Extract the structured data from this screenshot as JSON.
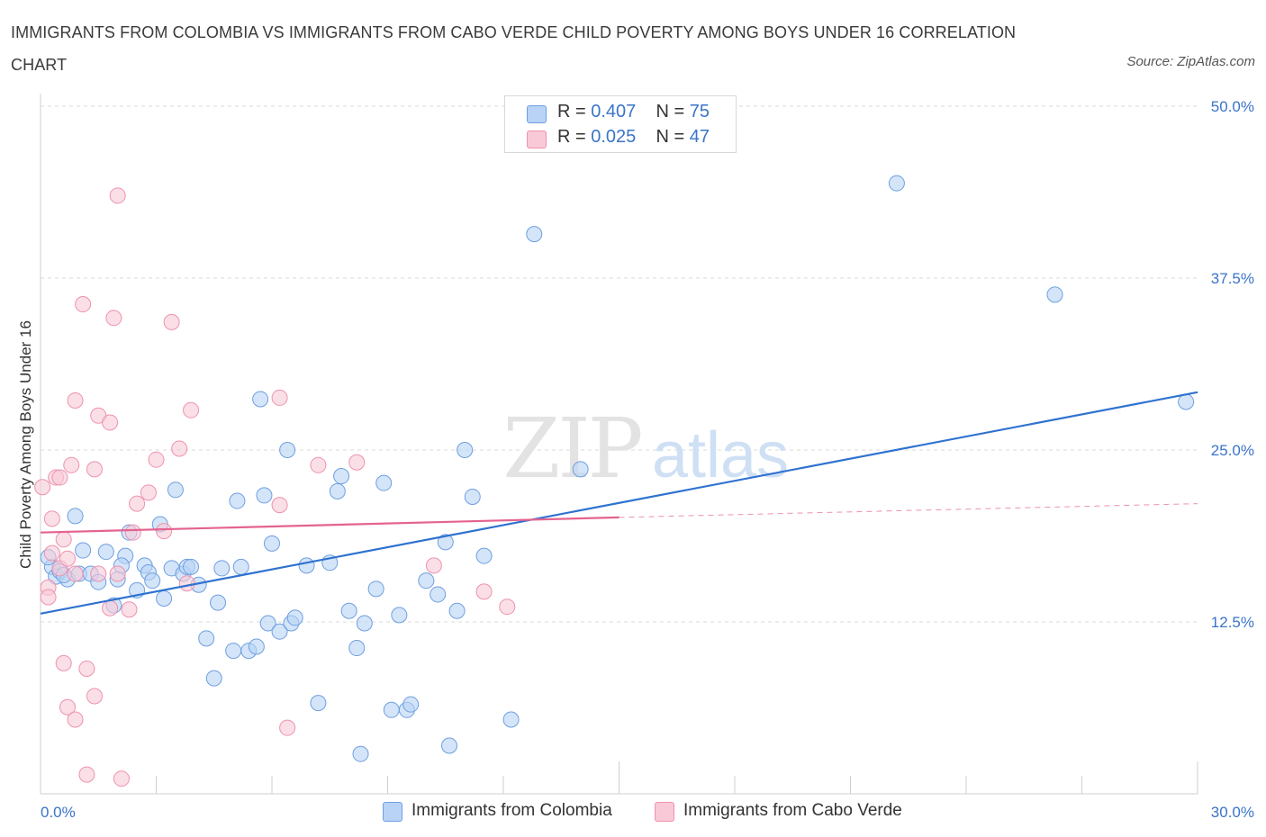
{
  "header": {
    "title": "IMMIGRANTS FROM COLOMBIA VS IMMIGRANTS FROM CABO VERDE CHILD POVERTY AMONG BOYS UNDER 16 CORRELATION CHART",
    "source": "Source: ZipAtlas.com"
  },
  "watermark": {
    "part1": "ZIP",
    "part2": "atlas"
  },
  "legend": {
    "colombia": {
      "r_label": "R = ",
      "r_value": "0.407",
      "n_label": "N = ",
      "n_value": "75"
    },
    "caboverde": {
      "r_label": "R = ",
      "r_value": "0.025",
      "n_label": "N = ",
      "n_value": "47"
    }
  },
  "bottom_legend": {
    "colombia": "Immigrants from Colombia",
    "caboverde": "Immigrants from Cabo Verde"
  },
  "colors": {
    "colombia_fill": "#b8d3f5",
    "colombia_stroke": "#6f9fe0",
    "colombia_line": "#2f72d0",
    "caboverde_fill": "#f9c9d7",
    "caboverde_stroke": "#ee92ad",
    "caboverde_line": "#e4638e",
    "tick_label": "#3a74c9",
    "grid": "#d9d9d9"
  },
  "chart_data": {
    "type": "scatter",
    "title": "IMMIGRANTS FROM COLOMBIA VS IMMIGRANTS FROM CABO VERDE CHILD POVERTY AMONG BOYS UNDER 16 CORRELATION CHART",
    "xlabel": "",
    "ylabel": "Child Poverty Among Boys Under 16",
    "xlim": [
      0,
      30
    ],
    "ylim": [
      0,
      50
    ],
    "x_tick_labels": [
      "0.0%",
      "30.0%"
    ],
    "x_tick_values": [
      0,
      30
    ],
    "y_tick_labels": [
      "12.5%",
      "25.0%",
      "37.5%",
      "50.0%"
    ],
    "y_tick_values": [
      12.5,
      25,
      37.5,
      50
    ],
    "grid": true,
    "legend_placement": "top-center",
    "series": [
      {
        "name": "Immigrants from Colombia",
        "R": 0.407,
        "N": 75,
        "trend": {
          "x": [
            0,
            30
          ],
          "y": [
            13.1,
            29.2
          ],
          "dashed_extension": false
        },
        "points": [
          [
            0.3,
            16.5
          ],
          [
            0.4,
            15.8
          ],
          [
            0.5,
            16.2
          ],
          [
            0.7,
            15.6
          ],
          [
            0.9,
            20.2
          ],
          [
            1.0,
            16.0
          ],
          [
            1.1,
            17.7
          ],
          [
            1.3,
            16.0
          ],
          [
            1.5,
            15.4
          ],
          [
            1.7,
            17.6
          ],
          [
            1.9,
            13.7
          ],
          [
            2.0,
            15.6
          ],
          [
            2.2,
            17.3
          ],
          [
            2.3,
            19.0
          ],
          [
            2.5,
            14.8
          ],
          [
            2.7,
            16.6
          ],
          [
            2.8,
            16.1
          ],
          [
            2.9,
            15.5
          ],
          [
            3.1,
            19.6
          ],
          [
            3.2,
            14.2
          ],
          [
            3.4,
            16.4
          ],
          [
            3.5,
            22.1
          ],
          [
            3.7,
            16.0
          ],
          [
            3.8,
            16.5
          ],
          [
            3.9,
            16.5
          ],
          [
            4.1,
            15.2
          ],
          [
            4.3,
            11.3
          ],
          [
            4.5,
            8.4
          ],
          [
            4.6,
            13.9
          ],
          [
            4.7,
            16.4
          ],
          [
            5.0,
            10.4
          ],
          [
            5.1,
            21.3
          ],
          [
            5.2,
            16.5
          ],
          [
            5.4,
            10.4
          ],
          [
            5.6,
            10.7
          ],
          [
            5.7,
            28.7
          ],
          [
            5.8,
            21.7
          ],
          [
            5.9,
            12.4
          ],
          [
            6.0,
            18.2
          ],
          [
            6.2,
            11.8
          ],
          [
            6.4,
            25.0
          ],
          [
            6.5,
            12.4
          ],
          [
            6.6,
            12.8
          ],
          [
            6.9,
            16.6
          ],
          [
            7.2,
            6.6
          ],
          [
            7.5,
            16.8
          ],
          [
            7.7,
            22.0
          ],
          [
            7.8,
            23.1
          ],
          [
            8.0,
            13.3
          ],
          [
            8.2,
            10.6
          ],
          [
            8.3,
            2.9
          ],
          [
            8.4,
            12.4
          ],
          [
            8.7,
            14.9
          ],
          [
            8.9,
            22.6
          ],
          [
            9.1,
            6.1
          ],
          [
            9.3,
            13.0
          ],
          [
            9.5,
            6.1
          ],
          [
            9.6,
            6.5
          ],
          [
            10.0,
            15.5
          ],
          [
            10.3,
            14.5
          ],
          [
            10.5,
            18.3
          ],
          [
            10.6,
            3.5
          ],
          [
            10.8,
            13.3
          ],
          [
            11.0,
            25.0
          ],
          [
            11.2,
            21.6
          ],
          [
            11.5,
            17.3
          ],
          [
            12.2,
            5.4
          ],
          [
            12.8,
            40.7
          ],
          [
            14.0,
            23.6
          ],
          [
            22.2,
            44.4
          ],
          [
            26.3,
            36.3
          ],
          [
            29.7,
            28.5
          ],
          [
            0.2,
            17.2
          ],
          [
            0.6,
            15.9
          ],
          [
            2.1,
            16.6
          ]
        ]
      },
      {
        "name": "Immigrants from Cabo Verde",
        "R": 0.025,
        "N": 47,
        "trend": {
          "x": [
            0,
            15
          ],
          "y": [
            19.0,
            20.1
          ],
          "dashed_extension": true,
          "dashed_to": {
            "x": 30,
            "y": 21.1
          }
        },
        "points": [
          [
            0.05,
            22.3
          ],
          [
            0.2,
            15.0
          ],
          [
            0.2,
            14.3
          ],
          [
            0.3,
            20.0
          ],
          [
            0.4,
            23.0
          ],
          [
            0.5,
            23.0
          ],
          [
            0.5,
            16.4
          ],
          [
            0.6,
            9.5
          ],
          [
            0.6,
            18.5
          ],
          [
            0.7,
            17.1
          ],
          [
            0.7,
            6.3
          ],
          [
            0.8,
            23.9
          ],
          [
            0.9,
            28.6
          ],
          [
            0.9,
            5.4
          ],
          [
            1.1,
            35.6
          ],
          [
            1.2,
            9.1
          ],
          [
            1.2,
            1.4
          ],
          [
            1.4,
            7.1
          ],
          [
            1.4,
            23.6
          ],
          [
            1.5,
            27.5
          ],
          [
            1.5,
            16.0
          ],
          [
            1.8,
            27.0
          ],
          [
            1.8,
            13.5
          ],
          [
            1.9,
            34.6
          ],
          [
            2.0,
            43.5
          ],
          [
            2.1,
            1.1
          ],
          [
            2.3,
            13.4
          ],
          [
            2.4,
            19.0
          ],
          [
            2.5,
            21.1
          ],
          [
            2.8,
            21.9
          ],
          [
            3.0,
            24.3
          ],
          [
            3.2,
            19.1
          ],
          [
            3.4,
            34.3
          ],
          [
            3.6,
            25.1
          ],
          [
            3.8,
            15.3
          ],
          [
            3.9,
            27.9
          ],
          [
            6.2,
            28.8
          ],
          [
            6.2,
            21.0
          ],
          [
            6.4,
            4.8
          ],
          [
            7.2,
            23.9
          ],
          [
            8.2,
            24.1
          ],
          [
            10.2,
            16.6
          ],
          [
            11.5,
            14.7
          ],
          [
            12.1,
            13.6
          ],
          [
            0.3,
            17.5
          ],
          [
            0.9,
            16.0
          ],
          [
            2.0,
            16.0
          ]
        ]
      }
    ]
  }
}
